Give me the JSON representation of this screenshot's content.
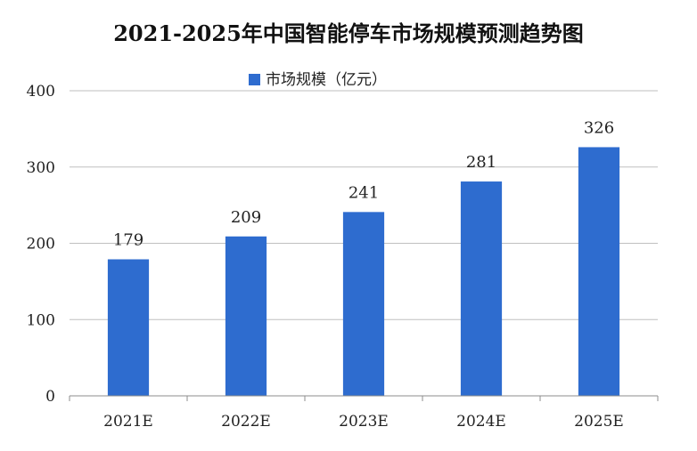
{
  "chart_data": {
    "type": "bar",
    "title": "2021-2025年中国智能停车市场规模预测趋势图",
    "categories": [
      "2021E",
      "2022E",
      "2023E",
      "2024E",
      "2025E"
    ],
    "series": [
      {
        "name": "市场规模（亿元）",
        "values": [
          179,
          209,
          241,
          281,
          326
        ]
      }
    ],
    "ylim": [
      0,
      400
    ],
    "yticks": [
      0,
      100,
      200,
      300,
      400
    ],
    "grid": true,
    "legend": "top-center",
    "colors": {
      "bar": "#2e6ccf"
    }
  }
}
